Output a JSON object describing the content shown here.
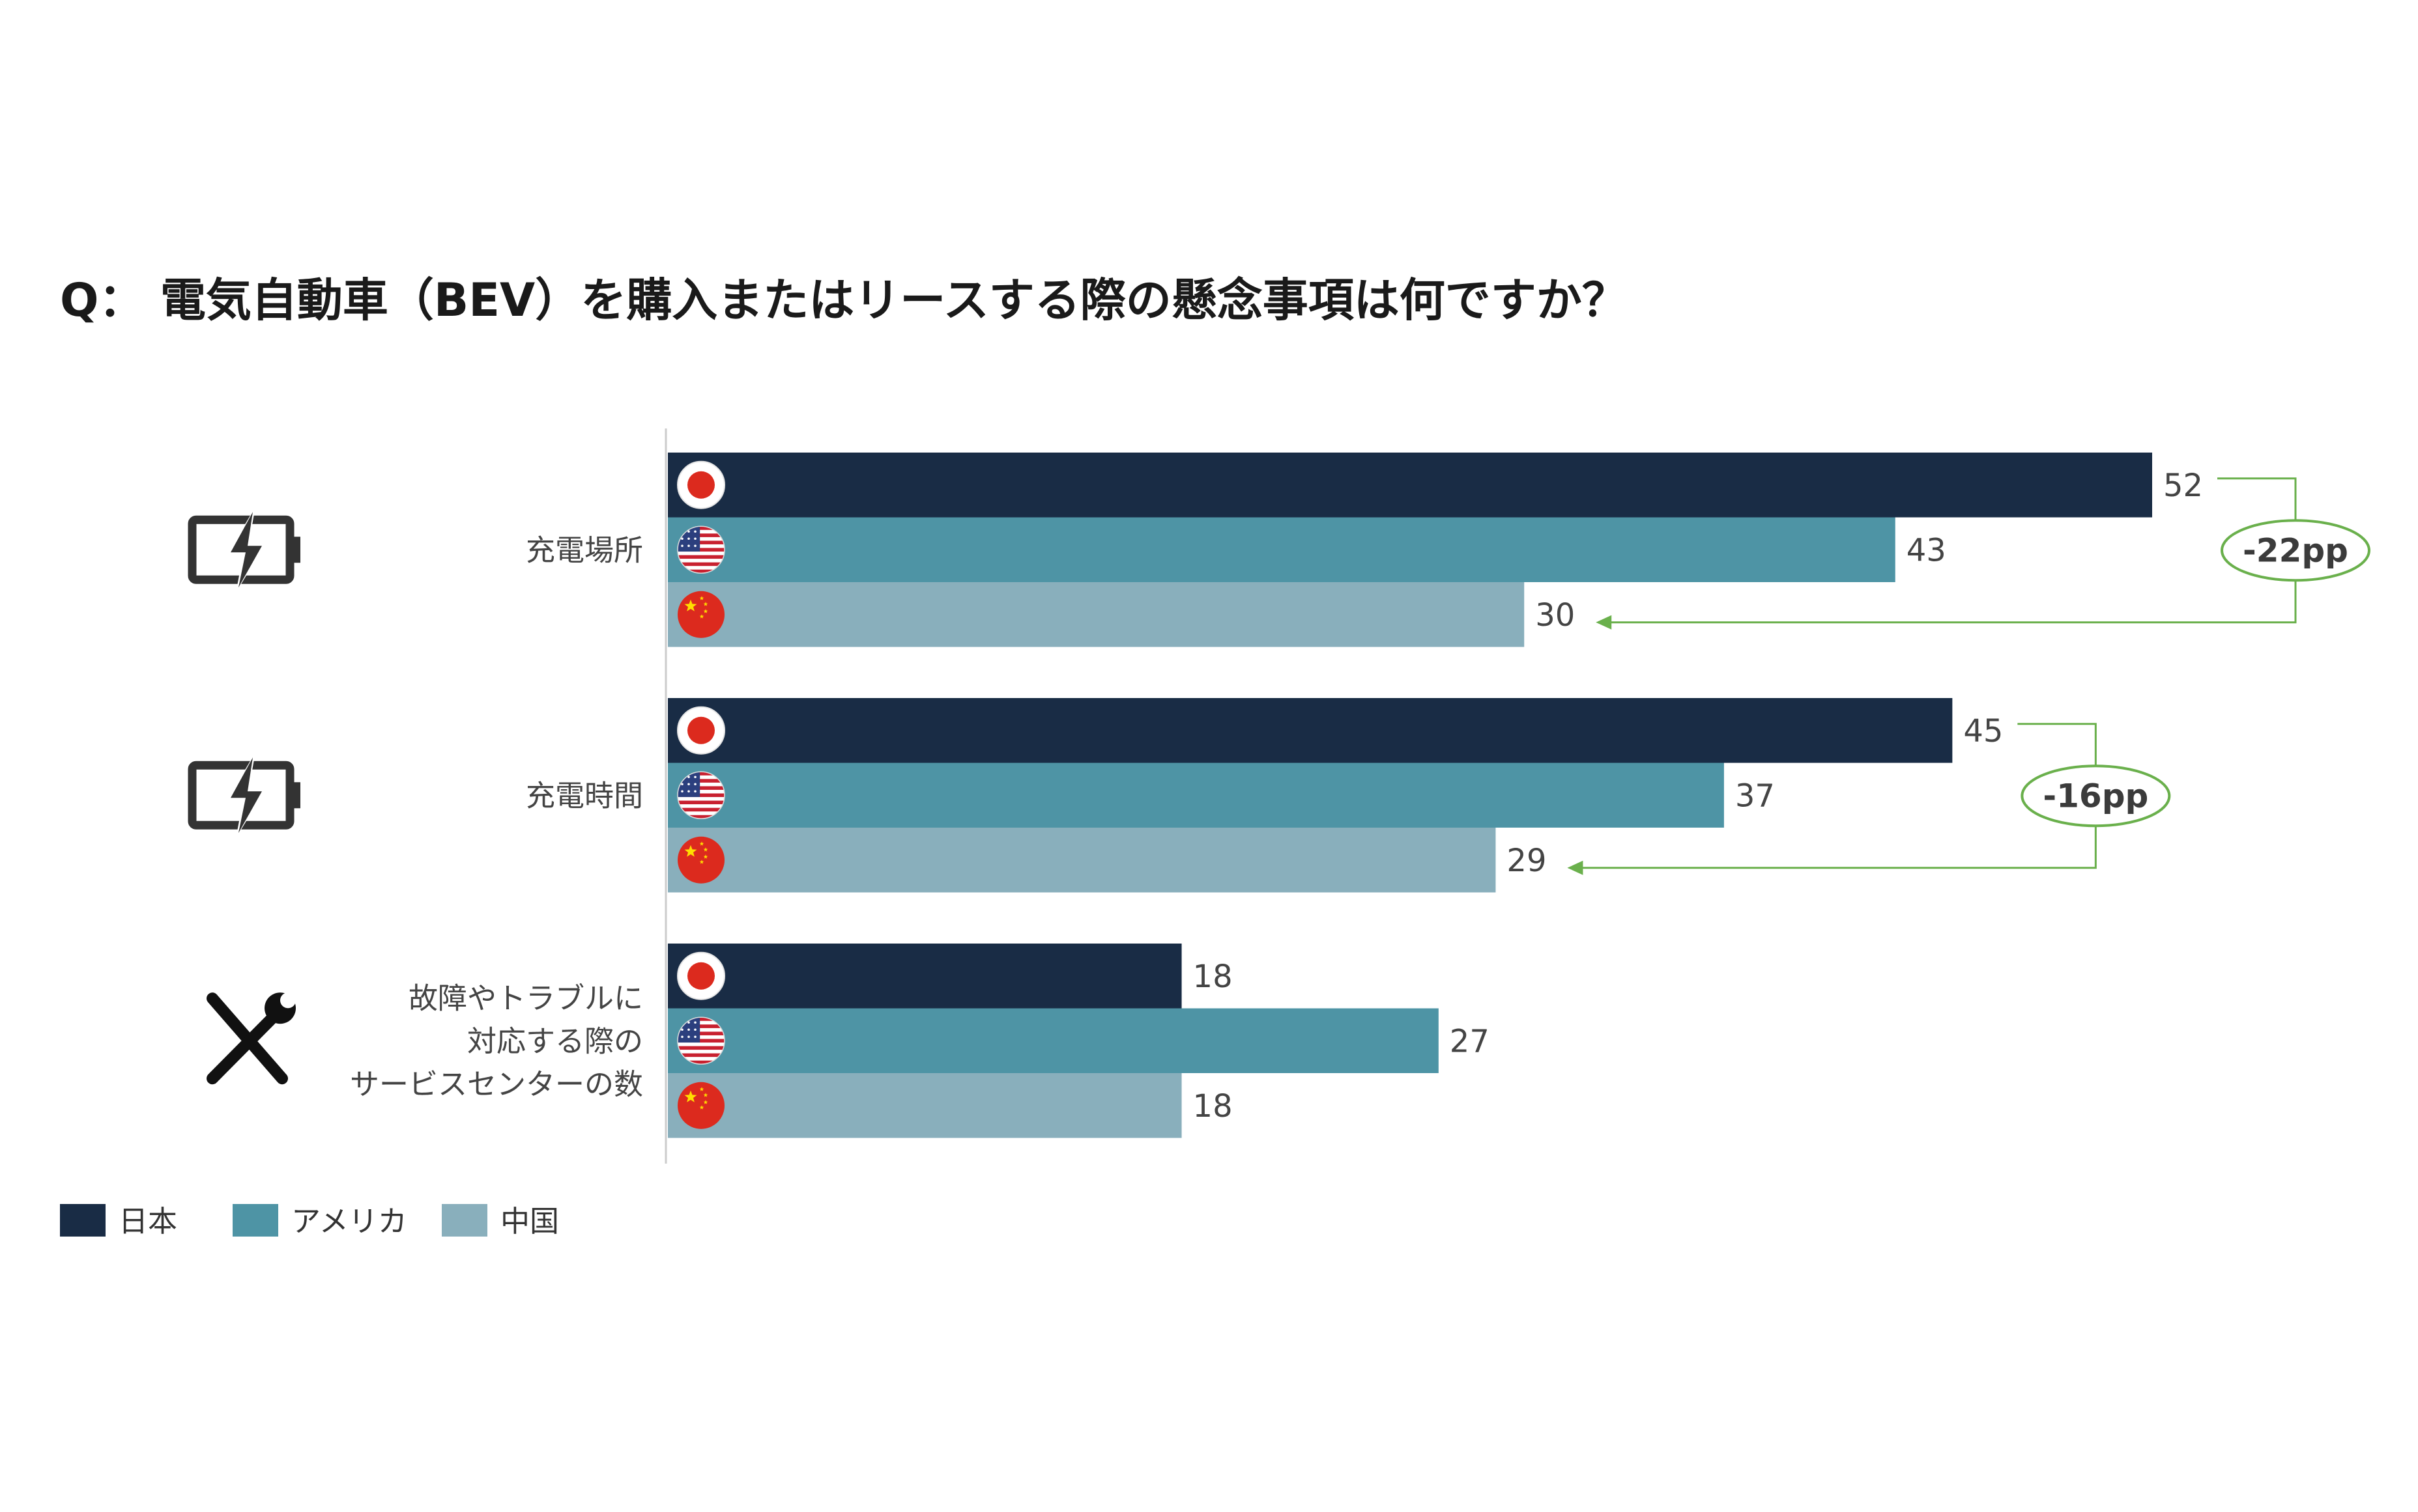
{
  "chart_data": {
    "type": "bar",
    "orientation": "horizontal",
    "title": "Q： 電気自動車（BEV）を購入またはリースする際の懸念事項は何ですか？",
    "xlim": [
      0,
      52
    ],
    "grid": false,
    "legend_position": "bottom-left",
    "categories": [
      {
        "label_lines": [
          "充電場所"
        ],
        "icon": "battery-charging-icon"
      },
      {
        "label_lines": [
          "充電時間"
        ],
        "icon": "battery-charging-icon"
      },
      {
        "label_lines": [
          "故障やトラブルに",
          "対応する際の",
          "サービスセンターの数"
        ],
        "icon": "wrench-screwdriver-icon"
      }
    ],
    "series": [
      {
        "name": "日本",
        "color": "#192c45",
        "flag": "japan-flag-icon",
        "values": [
          52,
          45,
          18
        ],
        "labels": [
          "52",
          "45",
          "18"
        ]
      },
      {
        "name": "アメリカ",
        "color": "#4e94a5",
        "flag": "usa-flag-icon",
        "values": [
          43,
          37,
          27
        ],
        "labels": [
          "43",
          "37",
          "27"
        ]
      },
      {
        "name": "中国",
        "color": "#89afbc",
        "flag": "china-flag-icon",
        "values": [
          30,
          29,
          18
        ],
        "labels": [
          "30",
          "29",
          "18"
        ]
      }
    ],
    "annotations": [
      {
        "category": 0,
        "from_series": 0,
        "to_series": 2,
        "text": "-22pp",
        "color": "#6ab04c"
      },
      {
        "category": 1,
        "from_series": 0,
        "to_series": 2,
        "text": "-16pp",
        "color": "#6ab04c"
      }
    ]
  }
}
